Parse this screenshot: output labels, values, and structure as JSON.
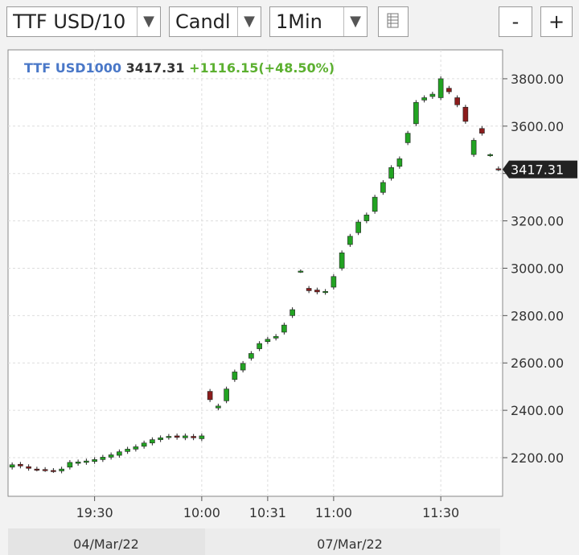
{
  "toolbar": {
    "symbol": "TTF USD/10",
    "chart_style": "Candl",
    "interval": "1Min",
    "zoom_out": "-",
    "zoom_in": "+"
  },
  "chart_data": {
    "type": "candlestick",
    "legend": {
      "symbol": "TTF USD1000",
      "last": "3417.31",
      "change": "+1116.15(+48.50%)"
    },
    "up_color": "#22a322",
    "down_color": "#8b1c1c",
    "categories": [
      null,
      null,
      null,
      null,
      null,
      null,
      null,
      null,
      null,
      null,
      "19:30",
      null,
      null,
      null,
      null,
      null,
      null,
      null,
      null,
      null,
      null,
      null,
      null,
      "10:00",
      null,
      null,
      null,
      null,
      null,
      null,
      null,
      "10:31",
      null,
      null,
      null,
      null,
      null,
      null,
      null,
      "11:00",
      null,
      null,
      null,
      null,
      null,
      null,
      null,
      null,
      null,
      null,
      null,
      null,
      "11:30",
      null,
      null,
      null,
      null,
      null,
      null,
      null
    ],
    "date_labels": [
      "04/Mar/22",
      "07/Mar/22"
    ],
    "open": [
      2160,
      2172,
      2162,
      2152,
      2150,
      2146,
      2144,
      2160,
      2176,
      2180,
      2184,
      2192,
      2202,
      2210,
      2226,
      2236,
      2248,
      2262,
      2276,
      2286,
      2292,
      2284,
      2290,
      2280,
      2480,
      2410,
      2440,
      2530,
      2570,
      2620,
      2660,
      2690,
      2705,
      2730,
      2800,
      2985,
      2915,
      2908,
      2898,
      2920,
      3000,
      3100,
      3150,
      3200,
      3240,
      3320,
      3380,
      3430,
      3530,
      3610,
      3710,
      3725,
      3720,
      3760,
      3720,
      3680,
      3480,
      3590,
      3478,
      3420
    ],
    "high": [
      2180,
      2182,
      2172,
      2162,
      2160,
      2156,
      2162,
      2190,
      2192,
      2196,
      2202,
      2212,
      2222,
      2235,
      2246,
      2256,
      2272,
      2286,
      2294,
      2300,
      2302,
      2302,
      2300,
      2302,
      2490,
      2428,
      2500,
      2572,
      2608,
      2650,
      2692,
      2710,
      2722,
      2770,
      2835,
      2995,
      2925,
      2918,
      2912,
      2975,
      3075,
      3145,
      3205,
      3235,
      3310,
      3372,
      3435,
      3472,
      3580,
      3710,
      3730,
      3745,
      3810,
      3770,
      3730,
      3690,
      3550,
      3600,
      3485,
      3430
    ],
    "low": [
      2150,
      2155,
      2145,
      2142,
      2140,
      2136,
      2134,
      2150,
      2166,
      2170,
      2174,
      2182,
      2192,
      2200,
      2216,
      2226,
      2238,
      2252,
      2266,
      2276,
      2276,
      2274,
      2274,
      2270,
      2435,
      2400,
      2430,
      2520,
      2560,
      2610,
      2650,
      2680,
      2695,
      2720,
      2790,
      2980,
      2895,
      2890,
      2888,
      2910,
      2990,
      3090,
      3140,
      3190,
      3230,
      3310,
      3370,
      3420,
      3520,
      3600,
      3700,
      3715,
      3710,
      3735,
      3680,
      3610,
      3470,
      3560,
      3470,
      3410
    ],
    "close": [
      2170,
      2165,
      2155,
      2150,
      2148,
      2145,
      2152,
      2180,
      2182,
      2186,
      2192,
      2202,
      2212,
      2225,
      2236,
      2246,
      2262,
      2276,
      2284,
      2290,
      2286,
      2292,
      2284,
      2292,
      2445,
      2418,
      2490,
      2562,
      2598,
      2640,
      2682,
      2700,
      2712,
      2760,
      2825,
      2988,
      2905,
      2900,
      2902,
      2965,
      3065,
      3135,
      3195,
      3225,
      3300,
      3362,
      3425,
      3462,
      3570,
      3700,
      3720,
      3735,
      3800,
      3745,
      3690,
      3620,
      3540,
      3570,
      3480,
      3417.31
    ],
    "ylim": [
      2037,
      3922
    ],
    "yticks": [
      {
        "value": 2200,
        "label": "2200.00"
      },
      {
        "value": 2400,
        "label": "2400.00"
      },
      {
        "value": 2600,
        "label": "2600.00"
      },
      {
        "value": 2800,
        "label": "2800.00"
      },
      {
        "value": 3000,
        "label": "3000.00"
      },
      {
        "value": 3200,
        "label": "3200.00"
      },
      {
        "value": 3400,
        "label": "3400.00"
      },
      {
        "value": 3600,
        "label": "3600.00"
      },
      {
        "value": 3800,
        "label": "3800.00"
      }
    ],
    "last_price": {
      "value": 3417.31,
      "label": "3417.31"
    },
    "grid": true
  }
}
